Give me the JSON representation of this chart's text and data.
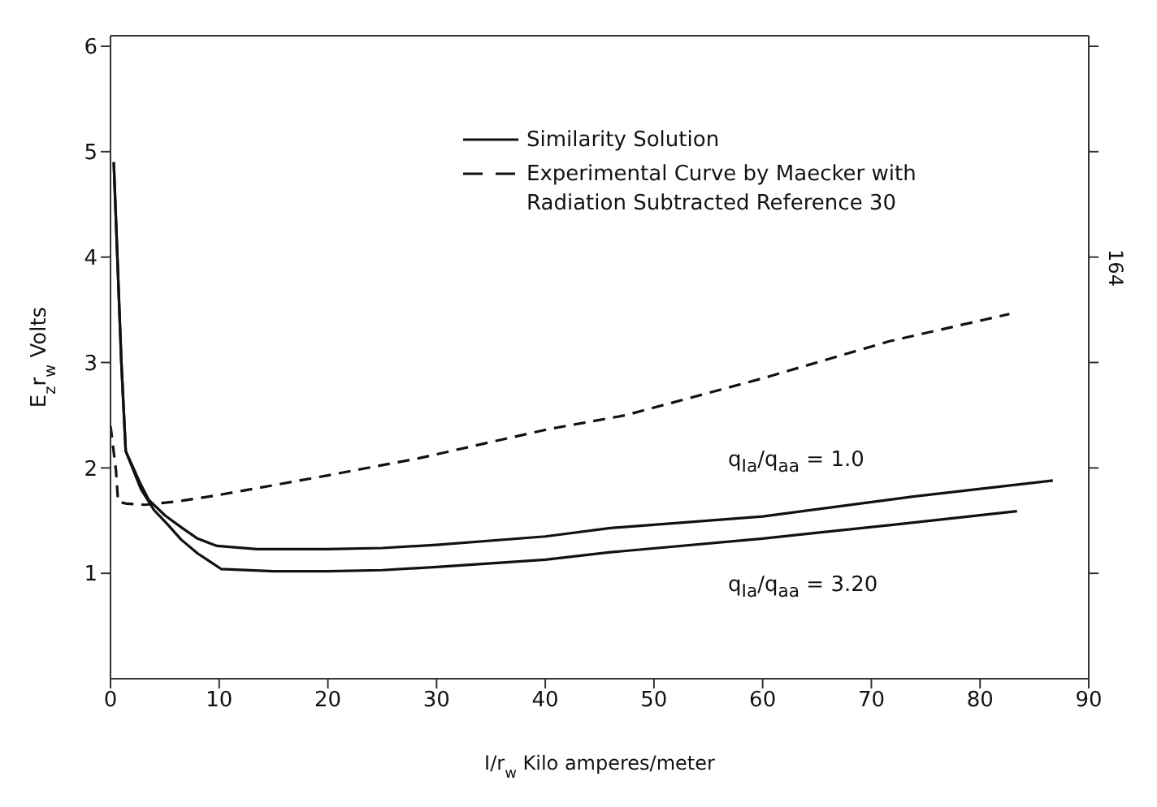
{
  "chart_data": {
    "type": "line",
    "xlabel": "I/r$_{w}$ Kilo amperes/meter",
    "ylabel": "E$_{z}$r$_{w}$   Volts",
    "xlim": [
      0,
      90
    ],
    "xticks": [
      0,
      10,
      20,
      30,
      40,
      50,
      60,
      70,
      80,
      90
    ],
    "ylim": [
      0,
      6.1
    ],
    "yticks": [
      1,
      2,
      3,
      4,
      5,
      6
    ],
    "legend": "top right",
    "marker": "none",
    "series": [
      {
        "name": "Similarity Solution",
        "color": "#111111",
        "line_style": "solid",
        "x": [
          0.3,
          1.0,
          1.4,
          2.8,
          3.5,
          5,
          6.6,
          8,
          9.8,
          13.5,
          20,
          25,
          30,
          40,
          46,
          60,
          74,
          86.7
        ],
        "values": [
          4.9,
          3.0,
          2.16,
          1.84,
          1.7,
          1.55,
          1.43,
          1.33,
          1.26,
          1.23,
          1.23,
          1.24,
          1.27,
          1.35,
          1.43,
          1.54,
          1.73,
          1.88
        ]
      },
      {
        "color": "#111111",
        "line_style": "solid",
        "x": [
          0.3,
          1.0,
          1.4,
          2.8,
          4,
          5.2,
          6.5,
          8,
          10.2,
          15,
          20,
          25,
          30,
          40,
          46,
          60,
          72,
          83.4
        ],
        "values": [
          4.9,
          3.0,
          2.16,
          1.8,
          1.6,
          1.47,
          1.32,
          1.19,
          1.04,
          1.02,
          1.02,
          1.03,
          1.06,
          1.13,
          1.2,
          1.33,
          1.46,
          1.59
        ]
      },
      {
        "name": "Experimental Curve by Maecker with Radiation Subtracted Reference 30",
        "color": "#111111",
        "line_style": "dashed",
        "x": [
          0,
          0.5,
          0.7,
          1.5,
          3.2,
          6,
          9.8,
          19,
          28.3,
          40.4,
          47.4,
          60,
          71.6,
          82.7
        ],
        "values": [
          2.4,
          1.98,
          1.68,
          1.66,
          1.65,
          1.68,
          1.74,
          1.91,
          2.09,
          2.37,
          2.5,
          2.85,
          3.2,
          3.46
        ]
      }
    ],
    "annotations": [
      "q$_{Ia}$/q$_{aa}$ = 1.0",
      "q$_{Ia}$/q$_{aa}$ = 3.20",
      "164"
    ]
  }
}
